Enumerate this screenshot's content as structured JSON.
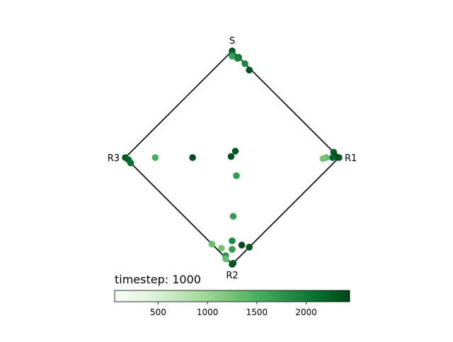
{
  "chart_data": {
    "type": "scatter",
    "title": "timestep: 1000",
    "vertex_labels": {
      "top": "S",
      "right": "R1",
      "bottom": "R2",
      "left": "R3"
    },
    "xlim": [
      -1.0,
      1.0
    ],
    "ylim": [
      -1.0,
      1.0
    ],
    "grid": false,
    "colorbar": {
      "colormap": "Greens",
      "range": [
        60,
        2440
      ],
      "ticks": [
        500,
        1000,
        1500,
        2000
      ],
      "orientation": "horizontal",
      "placement": "bottom"
    },
    "points": [
      {
        "x": 0.0,
        "y": 1.0,
        "v": 2300
      },
      {
        "x": 0.0,
        "y": 0.97,
        "v": 2200
      },
      {
        "x": 0.0,
        "y": 0.95,
        "v": 1650
      },
      {
        "x": 0.06,
        "y": 0.94,
        "v": 2100
      },
      {
        "x": 0.05,
        "y": 0.93,
        "v": 1950
      },
      {
        "x": 0.12,
        "y": 0.88,
        "v": 1900
      },
      {
        "x": 0.16,
        "y": 0.82,
        "v": 2350
      },
      {
        "x": 1.0,
        "y": 0.0,
        "v": 2300
      },
      {
        "x": 0.95,
        "y": 0.05,
        "v": 2250
      },
      {
        "x": 0.97,
        "y": 0.01,
        "v": 2400
      },
      {
        "x": 0.94,
        "y": 0.0,
        "v": 2200
      },
      {
        "x": 0.88,
        "y": 0.0,
        "v": 1350
      },
      {
        "x": 0.85,
        "y": -0.01,
        "v": 1250
      },
      {
        "x": -1.0,
        "y": 0.0,
        "v": 2300
      },
      {
        "x": -0.97,
        "y": -0.02,
        "v": 2200
      },
      {
        "x": -0.95,
        "y": -0.05,
        "v": 2100
      },
      {
        "x": -0.72,
        "y": 0.0,
        "v": 1500
      },
      {
        "x": -0.37,
        "y": 0.0,
        "v": 2400
      },
      {
        "x": -0.01,
        "y": 0.01,
        "v": 2350
      },
      {
        "x": 0.03,
        "y": 0.06,
        "v": 2300
      },
      {
        "x": 0.04,
        "y": -0.17,
        "v": 1700
      },
      {
        "x": 0.01,
        "y": -0.55,
        "v": 1700
      },
      {
        "x": 0.0,
        "y": -0.78,
        "v": 1850
      },
      {
        "x": 0.0,
        "y": -0.86,
        "v": 1700
      },
      {
        "x": 0.09,
        "y": -0.82,
        "v": 2400
      },
      {
        "x": 0.16,
        "y": -0.84,
        "v": 2350
      },
      {
        "x": -0.19,
        "y": -0.81,
        "v": 1300
      },
      {
        "x": -0.1,
        "y": -0.85,
        "v": 1250
      },
      {
        "x": -0.06,
        "y": -0.92,
        "v": 1750
      },
      {
        "x": -0.06,
        "y": -0.95,
        "v": 1350
      },
      {
        "x": 0.0,
        "y": -1.0,
        "v": 2400
      },
      {
        "x": 0.01,
        "y": -0.99,
        "v": 2300
      }
    ]
  }
}
